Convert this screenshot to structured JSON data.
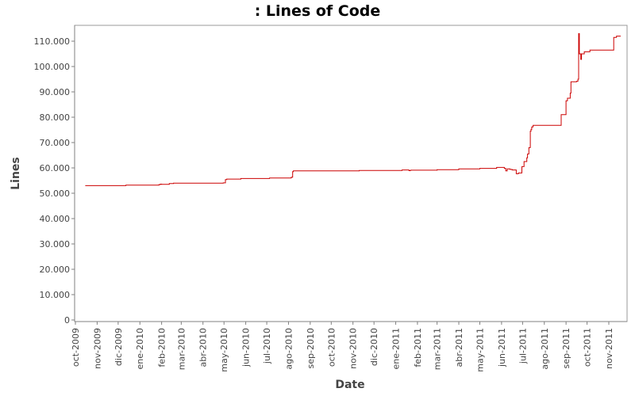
{
  "chart_data": {
    "type": "line",
    "title": ": Lines of Code",
    "xlabel": "Date",
    "ylabel": "Lines",
    "xlim": [
      "2009-10-01",
      "2011-12-01"
    ],
    "ylim": [
      0,
      115000
    ],
    "grid": false,
    "y_ticks": [
      0,
      10000,
      20000,
      30000,
      40000,
      50000,
      60000,
      70000,
      80000,
      90000,
      100000,
      110000
    ],
    "y_tick_labels": [
      "0",
      "10.000",
      "20.000",
      "30.000",
      "40.000",
      "50.000",
      "60.000",
      "70.000",
      "80.000",
      "90.000",
      "100.000",
      "110.000"
    ],
    "x_ticks": [
      "2009-10-01",
      "2009-11-01",
      "2009-12-01",
      "2010-01-01",
      "2010-02-01",
      "2010-03-01",
      "2010-04-01",
      "2010-05-01",
      "2010-06-01",
      "2010-07-01",
      "2010-08-01",
      "2010-09-01",
      "2010-10-01",
      "2010-11-01",
      "2010-12-01",
      "2011-01-01",
      "2011-02-01",
      "2011-03-01",
      "2011-04-01",
      "2011-05-01",
      "2011-06-01",
      "2011-07-01",
      "2011-08-01",
      "2011-09-01",
      "2011-10-01",
      "2011-11-01"
    ],
    "x_tick_labels": [
      "oct-2009",
      "nov-2009",
      "dic-2009",
      "ene-2010",
      "feb-2010",
      "mar-2010",
      "abr-2010",
      "may-2010",
      "jun-2010",
      "jul-2010",
      "ago-2010",
      "sep-2010",
      "oct-2010",
      "nov-2010",
      "dic-2010",
      "ene-2011",
      "feb-2011",
      "mar-2011",
      "abr-2011",
      "may-2011",
      "jun-2011",
      "jul-2011",
      "ago-2011",
      "sep-2011",
      "oct-2011",
      "nov-2011"
    ],
    "line_color": "#cc0000",
    "series": [
      {
        "x": [
          "2009-10-15",
          "2009-12-12",
          "2010-01-28",
          "2010-01-30",
          "2010-02-01",
          "2010-02-12",
          "2010-02-18",
          "2010-04-30",
          "2010-05-03",
          "2010-05-05",
          "2010-05-25",
          "2010-07-05",
          "2010-08-05",
          "2010-08-07",
          "2010-08-08",
          "2010-11-10",
          "2011-01-10",
          "2011-01-20",
          "2011-01-22",
          "2011-03-01",
          "2011-04-01",
          "2011-05-01",
          "2011-05-25",
          "2011-06-05",
          "2011-06-07",
          "2011-06-09",
          "2011-06-13",
          "2011-06-16",
          "2011-06-22",
          "2011-06-25",
          "2011-06-30",
          "2011-07-03",
          "2011-07-07",
          "2011-07-08",
          "2011-07-10",
          "2011-07-12",
          "2011-07-13",
          "2011-07-14",
          "2011-07-16",
          "2011-07-18",
          "2011-07-20",
          "2011-07-23",
          "2011-08-25",
          "2011-08-26",
          "2011-09-01",
          "2011-09-03",
          "2011-09-07",
          "2011-09-08",
          "2011-09-16",
          "2011-09-18",
          "2011-09-19",
          "2011-09-20",
          "2011-09-21",
          "2011-09-22",
          "2011-09-23",
          "2011-09-25",
          "2011-09-27",
          "2011-10-05",
          "2011-10-08",
          "2011-10-15",
          "2011-10-18",
          "2011-10-20",
          "2011-11-08",
          "2011-11-12",
          "2011-11-18"
        ],
        "y": [
          53000,
          53200,
          53400,
          53600,
          53500,
          53800,
          54000,
          54100,
          55400,
          55600,
          55800,
          56000,
          56300,
          58500,
          58800,
          59000,
          59200,
          58900,
          59100,
          59300,
          59600,
          59800,
          60200,
          59800,
          58800,
          59600,
          59400,
          59200,
          57700,
          58000,
          60500,
          62500,
          64000,
          65500,
          68000,
          74500,
          75200,
          76200,
          76800,
          76800,
          76800,
          76800,
          81000,
          81000,
          86500,
          87500,
          89500,
          94000,
          94200,
          95000,
          113000,
          105000,
          105000,
          102800,
          105000,
          105000,
          105800,
          106500,
          106500,
          106500,
          106500,
          106500,
          111500,
          112000,
          112000
        ]
      }
    ]
  }
}
